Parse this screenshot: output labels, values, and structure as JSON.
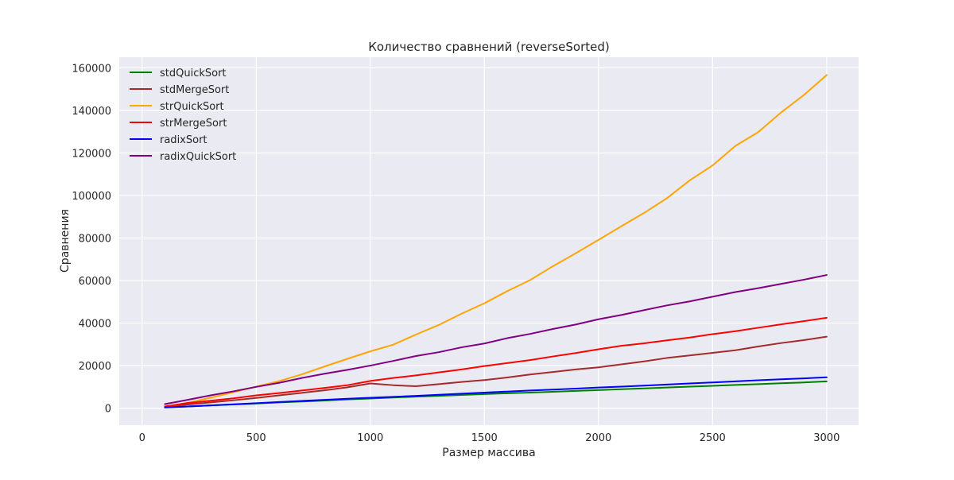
{
  "chart_data": {
    "type": "line",
    "title": "Количество сравнений (reverseSorted)",
    "xlabel": "Размер массива",
    "ylabel": "Сравнения",
    "xlim": [
      -100,
      3140
    ],
    "ylim": [
      -8000,
      165000
    ],
    "xticks": [
      0,
      500,
      1000,
      1500,
      2000,
      2500,
      3000
    ],
    "yticks": [
      0,
      20000,
      40000,
      60000,
      80000,
      100000,
      120000,
      140000,
      160000
    ],
    "grid": true,
    "legend_position": "top-left",
    "x": [
      100,
      200,
      300,
      400,
      500,
      600,
      700,
      800,
      900,
      1000,
      1100,
      1200,
      1300,
      1400,
      1500,
      1600,
      1700,
      1800,
      1900,
      2000,
      2100,
      2200,
      2300,
      2400,
      2500,
      2600,
      2700,
      2800,
      2900,
      3000
    ],
    "series": [
      {
        "name": "stdQuickSort",
        "color": "#008000",
        "values": [
          400,
          800,
          1300,
          1700,
          2200,
          2700,
          3100,
          3600,
          4100,
          4500,
          5000,
          5400,
          5800,
          6200,
          6600,
          7000,
          7300,
          7700,
          8100,
          8500,
          8900,
          9300,
          9700,
          10100,
          10500,
          10900,
          11300,
          11700,
          12100,
          12600
        ]
      },
      {
        "name": "stdMergeSort",
        "color": "#a52a2a",
        "values": [
          700,
          1700,
          2700,
          3700,
          4800,
          6000,
          7200,
          8400,
          9800,
          11600,
          10800,
          10300,
          11300,
          12300,
          13200,
          14400,
          15800,
          17000,
          18200,
          19200,
          20600,
          22000,
          23600,
          24800,
          26000,
          27200,
          29000,
          30600,
          32000,
          33600
        ]
      },
      {
        "name": "strQuickSort",
        "color": "#ffa500",
        "values": [
          700,
          2500,
          4900,
          7500,
          10100,
          12700,
          15900,
          19600,
          23200,
          26700,
          29800,
          34600,
          39100,
          44400,
          49300,
          55000,
          60200,
          66700,
          72800,
          79100,
          85500,
          91800,
          98700,
          107100,
          114100,
          123300,
          129800,
          139000,
          147200,
          156600
        ]
      },
      {
        "name": "strMergeSort",
        "color": "#ff0000",
        "values": [
          800,
          2400,
          3500,
          4600,
          6000,
          7100,
          8300,
          9500,
          10800,
          12800,
          14200,
          15400,
          16800,
          18200,
          19800,
          21200,
          22600,
          24300,
          25900,
          27700,
          29300,
          30500,
          31900,
          33200,
          34800,
          36200,
          37800,
          39400,
          40900,
          42500
        ]
      },
      {
        "name": "radixSort",
        "color": "#0000ff",
        "values": [
          300,
          800,
          1300,
          1800,
          2300,
          2900,
          3400,
          3900,
          4400,
          4900,
          5300,
          5800,
          6300,
          6800,
          7300,
          7800,
          8300,
          8700,
          9200,
          9700,
          10100,
          10600,
          11100,
          11600,
          12100,
          12600,
          13100,
          13600,
          14000,
          14500
        ]
      },
      {
        "name": "radixQuickSort",
        "color": "#800080",
        "values": [
          1900,
          3900,
          6000,
          7900,
          10000,
          11900,
          14200,
          16200,
          18000,
          20000,
          22200,
          24500,
          26300,
          28600,
          30400,
          32900,
          34900,
          37200,
          39300,
          41800,
          43800,
          46100,
          48300,
          50200,
          52400,
          54600,
          56400,
          58400,
          60400,
          62600
        ]
      }
    ]
  }
}
